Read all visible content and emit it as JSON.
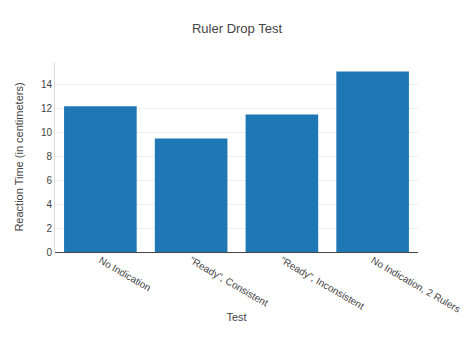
{
  "chart_data": {
    "type": "bar",
    "title": "Ruler Drop Test",
    "x_label": "Test",
    "y_label": "Reaction Time (in centimeters)",
    "categories": [
      "No Indication",
      "\"Ready\", Consistent",
      "\"Ready\", Inconsistent",
      "No Indication, 2 Rulers"
    ],
    "values": [
      12.2,
      9.5,
      11.5,
      15.1
    ],
    "color": "#1f77b4",
    "ylim": [
      0,
      15.9
    ],
    "yticks": [
      0,
      2,
      4,
      6,
      8,
      10,
      12,
      14
    ],
    "grid": true
  }
}
